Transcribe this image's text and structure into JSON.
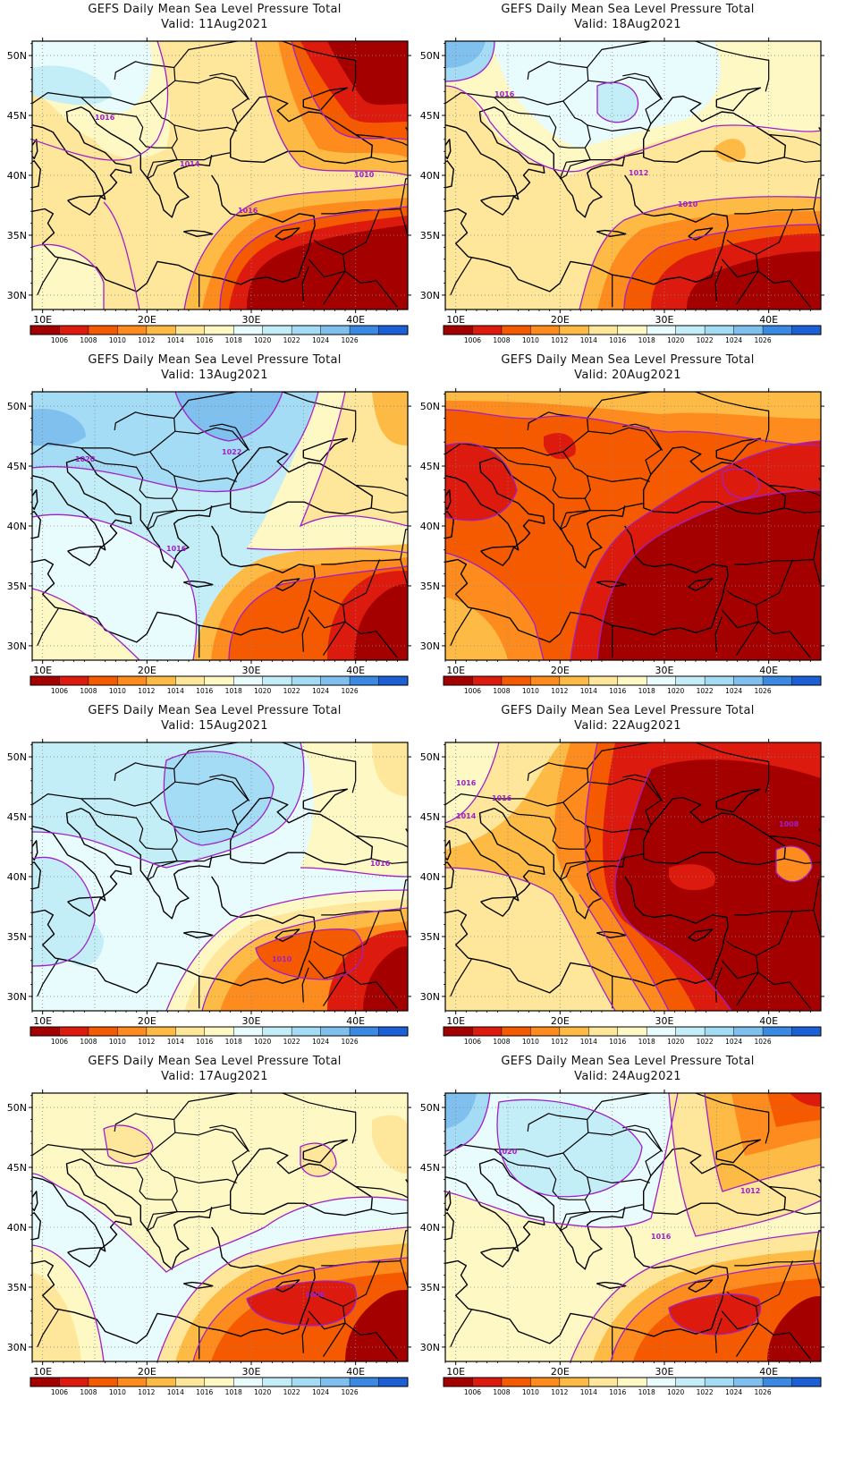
{
  "title_text": "GEFS Daily Mean Sea Level Pressure Total",
  "valid_prefix": "Valid:",
  "legend": {
    "ticks": [
      "1006",
      "1008",
      "1010",
      "1012",
      "1014",
      "1016",
      "1018",
      "1020",
      "1022",
      "1024",
      "1026"
    ],
    "colors": [
      "#a50000",
      "#dc1a0e",
      "#f55a00",
      "#fd8b1e",
      "#fdbb45",
      "#fee79a",
      "#fef8c4",
      "#e8fbfd",
      "#c3eef8",
      "#a5dcf5",
      "#80c0ee",
      "#3a8ae4",
      "#1d5fd4"
    ]
  },
  "axes": {
    "lat_labels": [
      "50N",
      "45N",
      "40N",
      "35N",
      "30N"
    ],
    "lon_labels": [
      "10E",
      "20E",
      "30E",
      "40E"
    ]
  },
  "contour_line_color": "#a020c8",
  "panels": [
    {
      "date": "11Aug2021",
      "contour_labels": [
        "1016",
        "1014",
        "1010",
        "1016"
      ]
    },
    {
      "date": "18Aug2021",
      "contour_labels": [
        "1016",
        "1012",
        "1010"
      ]
    },
    {
      "date": "13Aug2021",
      "contour_labels": [
        "1020",
        "1022",
        "1016"
      ]
    },
    {
      "date": "20Aug2021",
      "contour_labels": []
    },
    {
      "date": "15Aug2021",
      "contour_labels": [
        "1016",
        "1010"
      ]
    },
    {
      "date": "22Aug2021",
      "contour_labels": [
        "1016",
        "1016",
        "1014",
        "1008"
      ]
    },
    {
      "date": "17Aug2021",
      "contour_labels": [
        "1008"
      ]
    },
    {
      "date": "24Aug2021",
      "contour_labels": [
        "1020",
        "1012",
        "1016"
      ]
    }
  ]
}
